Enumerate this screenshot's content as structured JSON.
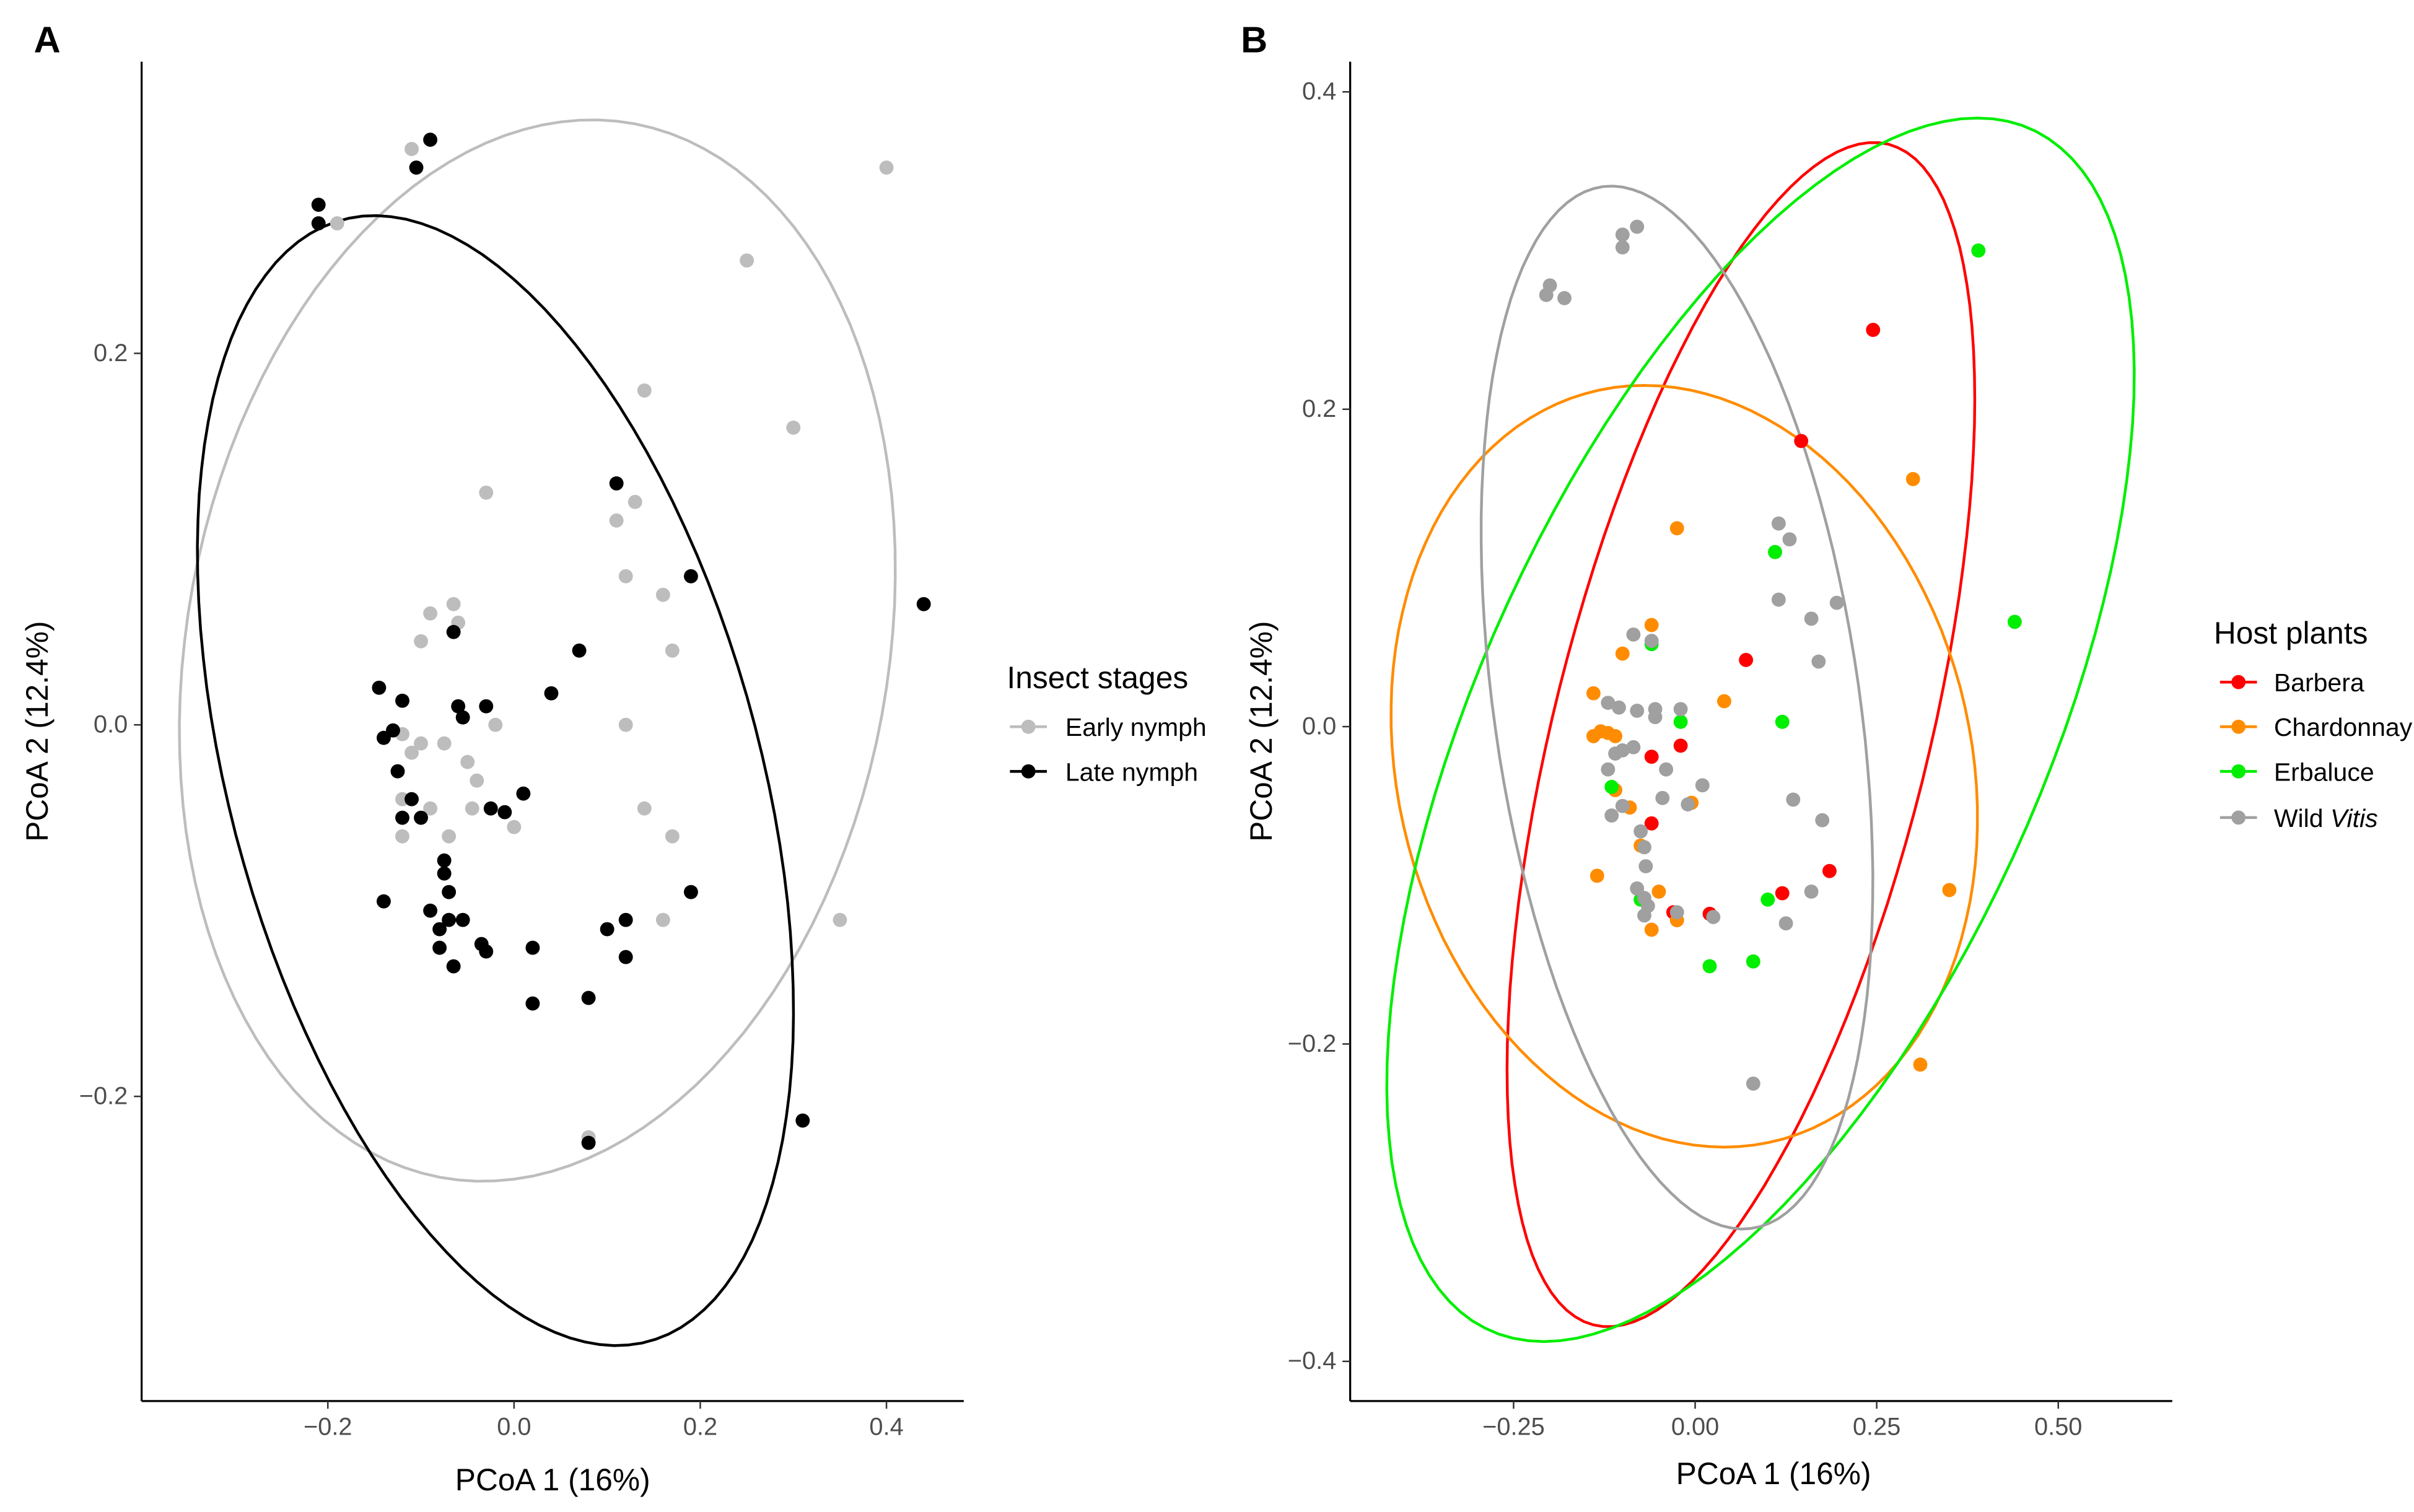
{
  "chart_data": [
    {
      "type": "scatter",
      "panel_label": "A",
      "xlabel": "PCoA 1 (16%)",
      "ylabel": "PCoA 2 (12.4%)",
      "xlim": [
        -0.4,
        0.483
      ],
      "ylim": [
        -0.364,
        0.357
      ],
      "xticks": [
        {
          "v": -0.2,
          "label": "−0.2"
        },
        {
          "v": 0.0,
          "label": "0.0"
        },
        {
          "v": 0.2,
          "label": "0.2"
        },
        {
          "v": 0.4,
          "label": "0.4"
        }
      ],
      "yticks": [
        {
          "v": -0.2,
          "label": "−0.2"
        },
        {
          "v": 0.0,
          "label": "0.0"
        },
        {
          "v": 0.2,
          "label": "0.2"
        }
      ],
      "grid": false,
      "legend": {
        "title": "Insect stages",
        "placement": "right"
      },
      "series": [
        {
          "name": "Early nymph",
          "color": "#bdbdbd",
          "points": [
            [
              -0.11,
              0.31
            ],
            [
              -0.19,
              0.27
            ],
            [
              0.4,
              0.3
            ],
            [
              0.25,
              0.25
            ],
            [
              0.14,
              0.18
            ],
            [
              0.3,
              0.16
            ],
            [
              -0.03,
              0.125
            ],
            [
              0.13,
              0.12
            ],
            [
              0.11,
              0.11
            ],
            [
              0.12,
              0.08
            ],
            [
              0.16,
              0.07
            ],
            [
              0.17,
              0.04
            ],
            [
              -0.065,
              0.065
            ],
            [
              -0.09,
              0.06
            ],
            [
              -0.1,
              0.045
            ],
            [
              -0.06,
              0.055
            ],
            [
              -0.02,
              0.0
            ],
            [
              0.12,
              0.0
            ],
            [
              -0.12,
              -0.005
            ],
            [
              -0.1,
              -0.01
            ],
            [
              -0.11,
              -0.015
            ],
            [
              -0.075,
              -0.01
            ],
            [
              -0.05,
              -0.02
            ],
            [
              -0.04,
              -0.03
            ],
            [
              -0.12,
              -0.04
            ],
            [
              -0.09,
              -0.045
            ],
            [
              -0.045,
              -0.045
            ],
            [
              -0.12,
              -0.06
            ],
            [
              -0.07,
              -0.06
            ],
            [
              0.0,
              -0.055
            ],
            [
              0.14,
              -0.045
            ],
            [
              0.17,
              -0.06
            ],
            [
              0.16,
              -0.105
            ],
            [
              0.35,
              -0.105
            ],
            [
              0.08,
              -0.222
            ]
          ]
        },
        {
          "name": "Late nymph",
          "color": "#000000",
          "points": [
            [
              -0.09,
              0.315
            ],
            [
              -0.105,
              0.3
            ],
            [
              -0.21,
              0.28
            ],
            [
              -0.21,
              0.27
            ],
            [
              0.11,
              0.13
            ],
            [
              0.19,
              0.08
            ],
            [
              0.44,
              0.065
            ],
            [
              0.07,
              0.04
            ],
            [
              -0.065,
              0.05
            ],
            [
              0.04,
              0.017
            ],
            [
              -0.145,
              0.02
            ],
            [
              -0.12,
              0.013
            ],
            [
              -0.06,
              0.01
            ],
            [
              -0.055,
              0.004
            ],
            [
              -0.03,
              0.01
            ],
            [
              -0.13,
              -0.003
            ],
            [
              -0.14,
              -0.007
            ],
            [
              -0.125,
              -0.025
            ],
            [
              -0.11,
              -0.04
            ],
            [
              -0.1,
              -0.05
            ],
            [
              -0.12,
              -0.05
            ],
            [
              -0.025,
              -0.045
            ],
            [
              -0.01,
              -0.047
            ],
            [
              0.01,
              -0.037
            ],
            [
              -0.075,
              -0.073
            ],
            [
              -0.075,
              -0.08
            ],
            [
              -0.07,
              -0.09
            ],
            [
              -0.14,
              -0.095
            ],
            [
              -0.09,
              -0.1
            ],
            [
              -0.07,
              -0.105
            ],
            [
              -0.055,
              -0.105
            ],
            [
              -0.08,
              -0.11
            ],
            [
              -0.08,
              -0.12
            ],
            [
              -0.065,
              -0.13
            ],
            [
              -0.035,
              -0.118
            ],
            [
              -0.03,
              -0.122
            ],
            [
              0.02,
              -0.12
            ],
            [
              0.02,
              -0.15
            ],
            [
              0.1,
              -0.11
            ],
            [
              0.12,
              -0.105
            ],
            [
              0.12,
              -0.125
            ],
            [
              0.19,
              -0.09
            ],
            [
              0.08,
              -0.147
            ],
            [
              0.31,
              -0.213
            ],
            [
              0.08,
              -0.225
            ]
          ]
        }
      ],
      "ellipses": [
        {
          "series": "Early nymph",
          "center": [
            0.025,
            0.04
          ],
          "axis_a": [
            0.085,
            0.285
          ],
          "axis_b": [
            0.375,
            -0.02
          ]
        },
        {
          "series": "Late nymph",
          "center": [
            -0.02,
            -0.03
          ],
          "axis_a": [
            -0.08,
            0.3
          ],
          "axis_b": [
            0.31,
            -0.05
          ]
        }
      ]
    },
    {
      "type": "scatter",
      "panel_label": "B",
      "xlabel": "PCoA 1 (16%)",
      "ylabel": "PCoA 2 (12.4%)",
      "xlim": [
        -0.475,
        0.657
      ],
      "ylim": [
        -0.425,
        0.419
      ],
      "xticks": [
        {
          "v": -0.25,
          "label": "−0.25"
        },
        {
          "v": 0.0,
          "label": "0.00"
        },
        {
          "v": 0.25,
          "label": "0.25"
        },
        {
          "v": 0.5,
          "label": "0.50"
        }
      ],
      "yticks": [
        {
          "v": -0.4,
          "label": "−0.4"
        },
        {
          "v": -0.2,
          "label": "−0.2"
        },
        {
          "v": 0.0,
          "label": "0.0"
        },
        {
          "v": 0.2,
          "label": "0.2"
        },
        {
          "v": 0.4,
          "label": "0.4"
        }
      ],
      "grid": false,
      "legend": {
        "title": "Host plants",
        "placement": "right"
      },
      "series": [
        {
          "name": "Barbera",
          "name_italic": "",
          "color": "#ff0000",
          "points": [
            [
              0.245,
              0.25
            ],
            [
              0.146,
              0.18
            ],
            [
              0.07,
              0.042
            ],
            [
              -0.02,
              -0.012
            ],
            [
              -0.06,
              -0.019
            ],
            [
              -0.06,
              -0.061
            ],
            [
              -0.03,
              -0.117
            ],
            [
              0.02,
              -0.118
            ],
            [
              0.12,
              -0.105
            ],
            [
              0.185,
              -0.091
            ]
          ]
        },
        {
          "name": "Chardonnay",
          "name_italic": "",
          "color": "#ff8c00",
          "points": [
            [
              -0.025,
              0.125
            ],
            [
              0.3,
              0.156
            ],
            [
              -0.1,
              0.046
            ],
            [
              -0.06,
              0.064
            ],
            [
              0.04,
              0.016
            ],
            [
              -0.14,
              0.021
            ],
            [
              -0.13,
              -0.003
            ],
            [
              -0.12,
              -0.004
            ],
            [
              -0.14,
              -0.006
            ],
            [
              -0.11,
              -0.006
            ],
            [
              -0.11,
              -0.04
            ],
            [
              -0.09,
              -0.051
            ],
            [
              -0.075,
              -0.075
            ],
            [
              -0.135,
              -0.094
            ],
            [
              -0.05,
              -0.104
            ],
            [
              -0.005,
              -0.048
            ],
            [
              -0.025,
              -0.122
            ],
            [
              -0.06,
              -0.128
            ],
            [
              0.35,
              -0.103
            ],
            [
              0.31,
              -0.213
            ]
          ]
        },
        {
          "name": "Erbaluce",
          "name_italic": "",
          "color": "#00ee00",
          "points": [
            [
              0.39,
              0.3
            ],
            [
              0.11,
              0.11
            ],
            [
              0.44,
              0.066
            ],
            [
              -0.06,
              0.052
            ],
            [
              -0.02,
              0.003
            ],
            [
              0.12,
              0.003
            ],
            [
              -0.115,
              -0.038
            ],
            [
              -0.075,
              -0.109
            ],
            [
              0.1,
              -0.109
            ],
            [
              0.02,
              -0.151
            ],
            [
              0.08,
              -0.148
            ]
          ]
        },
        {
          "name": "Wild ",
          "name_italic": "Vitis",
          "color": "#a0a0a0",
          "points": [
            [
              -0.2,
              0.278
            ],
            [
              -0.205,
              0.272
            ],
            [
              -0.18,
              0.27
            ],
            [
              -0.1,
              0.31
            ],
            [
              -0.08,
              0.315
            ],
            [
              -0.1,
              0.302
            ],
            [
              0.115,
              0.128
            ],
            [
              0.13,
              0.118
            ],
            [
              0.115,
              0.08
            ],
            [
              0.16,
              0.068
            ],
            [
              0.195,
              0.078
            ],
            [
              0.17,
              0.041
            ],
            [
              -0.085,
              0.058
            ],
            [
              -0.06,
              0.054
            ],
            [
              -0.12,
              0.015
            ],
            [
              -0.105,
              0.012
            ],
            [
              -0.08,
              0.01
            ],
            [
              -0.055,
              0.011
            ],
            [
              -0.055,
              0.006
            ],
            [
              -0.02,
              0.011
            ],
            [
              -0.1,
              -0.015
            ],
            [
              -0.085,
              -0.013
            ],
            [
              -0.11,
              -0.017
            ],
            [
              -0.04,
              -0.027
            ],
            [
              -0.12,
              -0.027
            ],
            [
              -0.045,
              -0.045
            ],
            [
              -0.1,
              -0.05
            ],
            [
              -0.01,
              -0.049
            ],
            [
              0.01,
              -0.037
            ],
            [
              -0.115,
              -0.056
            ],
            [
              -0.075,
              -0.066
            ],
            [
              -0.07,
              -0.076
            ],
            [
              -0.068,
              -0.088
            ],
            [
              -0.08,
              -0.102
            ],
            [
              -0.07,
              -0.108
            ],
            [
              -0.065,
              -0.113
            ],
            [
              -0.07,
              -0.119
            ],
            [
              -0.025,
              -0.117
            ],
            [
              0.025,
              -0.12
            ],
            [
              0.135,
              -0.046
            ],
            [
              0.175,
              -0.059
            ],
            [
              0.16,
              -0.104
            ],
            [
              0.125,
              -0.124
            ],
            [
              0.08,
              -0.225
            ]
          ]
        }
      ],
      "ellipses": [
        {
          "series": "Barbera",
          "center": [
            0.063,
            -0.005
          ],
          "axis_a": [
            0.19,
            0.373
          ],
          "axis_b": [
            0.26,
            -0.01
          ]
        },
        {
          "series": "Chardonnay",
          "center": [
            -0.015,
            -0.025
          ],
          "axis_a": [
            -0.055,
            0.24
          ],
          "axis_b": [
            0.4,
            0.0
          ]
        },
        {
          "series": "Erbaluce",
          "center": [
            0.09,
            -0.002
          ],
          "axis_a": [
            0.32,
            0.385
          ],
          "axis_b": [
            0.403,
            -0.02
          ]
        },
        {
          "series": "Wild Vitis",
          "center": [
            -0.025,
            0.012
          ],
          "axis_a": [
            -0.075,
            0.328
          ],
          "axis_b": [
            0.259,
            -0.02
          ]
        }
      ]
    }
  ]
}
